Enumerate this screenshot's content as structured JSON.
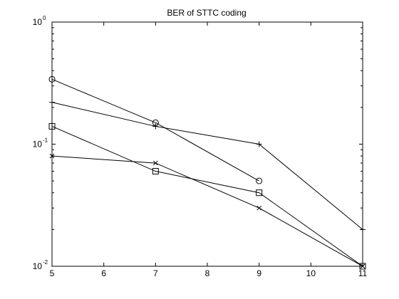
{
  "chart_data": {
    "type": "line",
    "title": "BER of STTC coding",
    "xlabel": "",
    "ylabel": "",
    "xlim": [
      5,
      11
    ],
    "ylim": [
      0.01,
      1
    ],
    "yscale": "log",
    "xticks": [
      5,
      6,
      7,
      8,
      9,
      10,
      11
    ],
    "yticks": [
      {
        "base": "10",
        "exp": "-2"
      },
      {
        "base": "10",
        "exp": "-1"
      },
      {
        "base": "10",
        "exp": "0"
      }
    ],
    "grid": false,
    "line_color": "#000000",
    "series": [
      {
        "marker": "circle",
        "x": [
          5,
          7,
          9
        ],
        "y": [
          0.34,
          0.15,
          0.05
        ]
      },
      {
        "marker": "plus",
        "x": [
          5,
          7,
          9,
          11
        ],
        "y": [
          0.22,
          0.14,
          0.1,
          0.02
        ]
      },
      {
        "marker": "square",
        "x": [
          5,
          7,
          9,
          11
        ],
        "y": [
          0.14,
          0.06,
          0.04,
          0.01
        ]
      },
      {
        "marker": "x",
        "x": [
          5,
          7,
          9,
          11
        ],
        "y": [
          0.08,
          0.07,
          0.03,
          0.01
        ]
      }
    ]
  }
}
